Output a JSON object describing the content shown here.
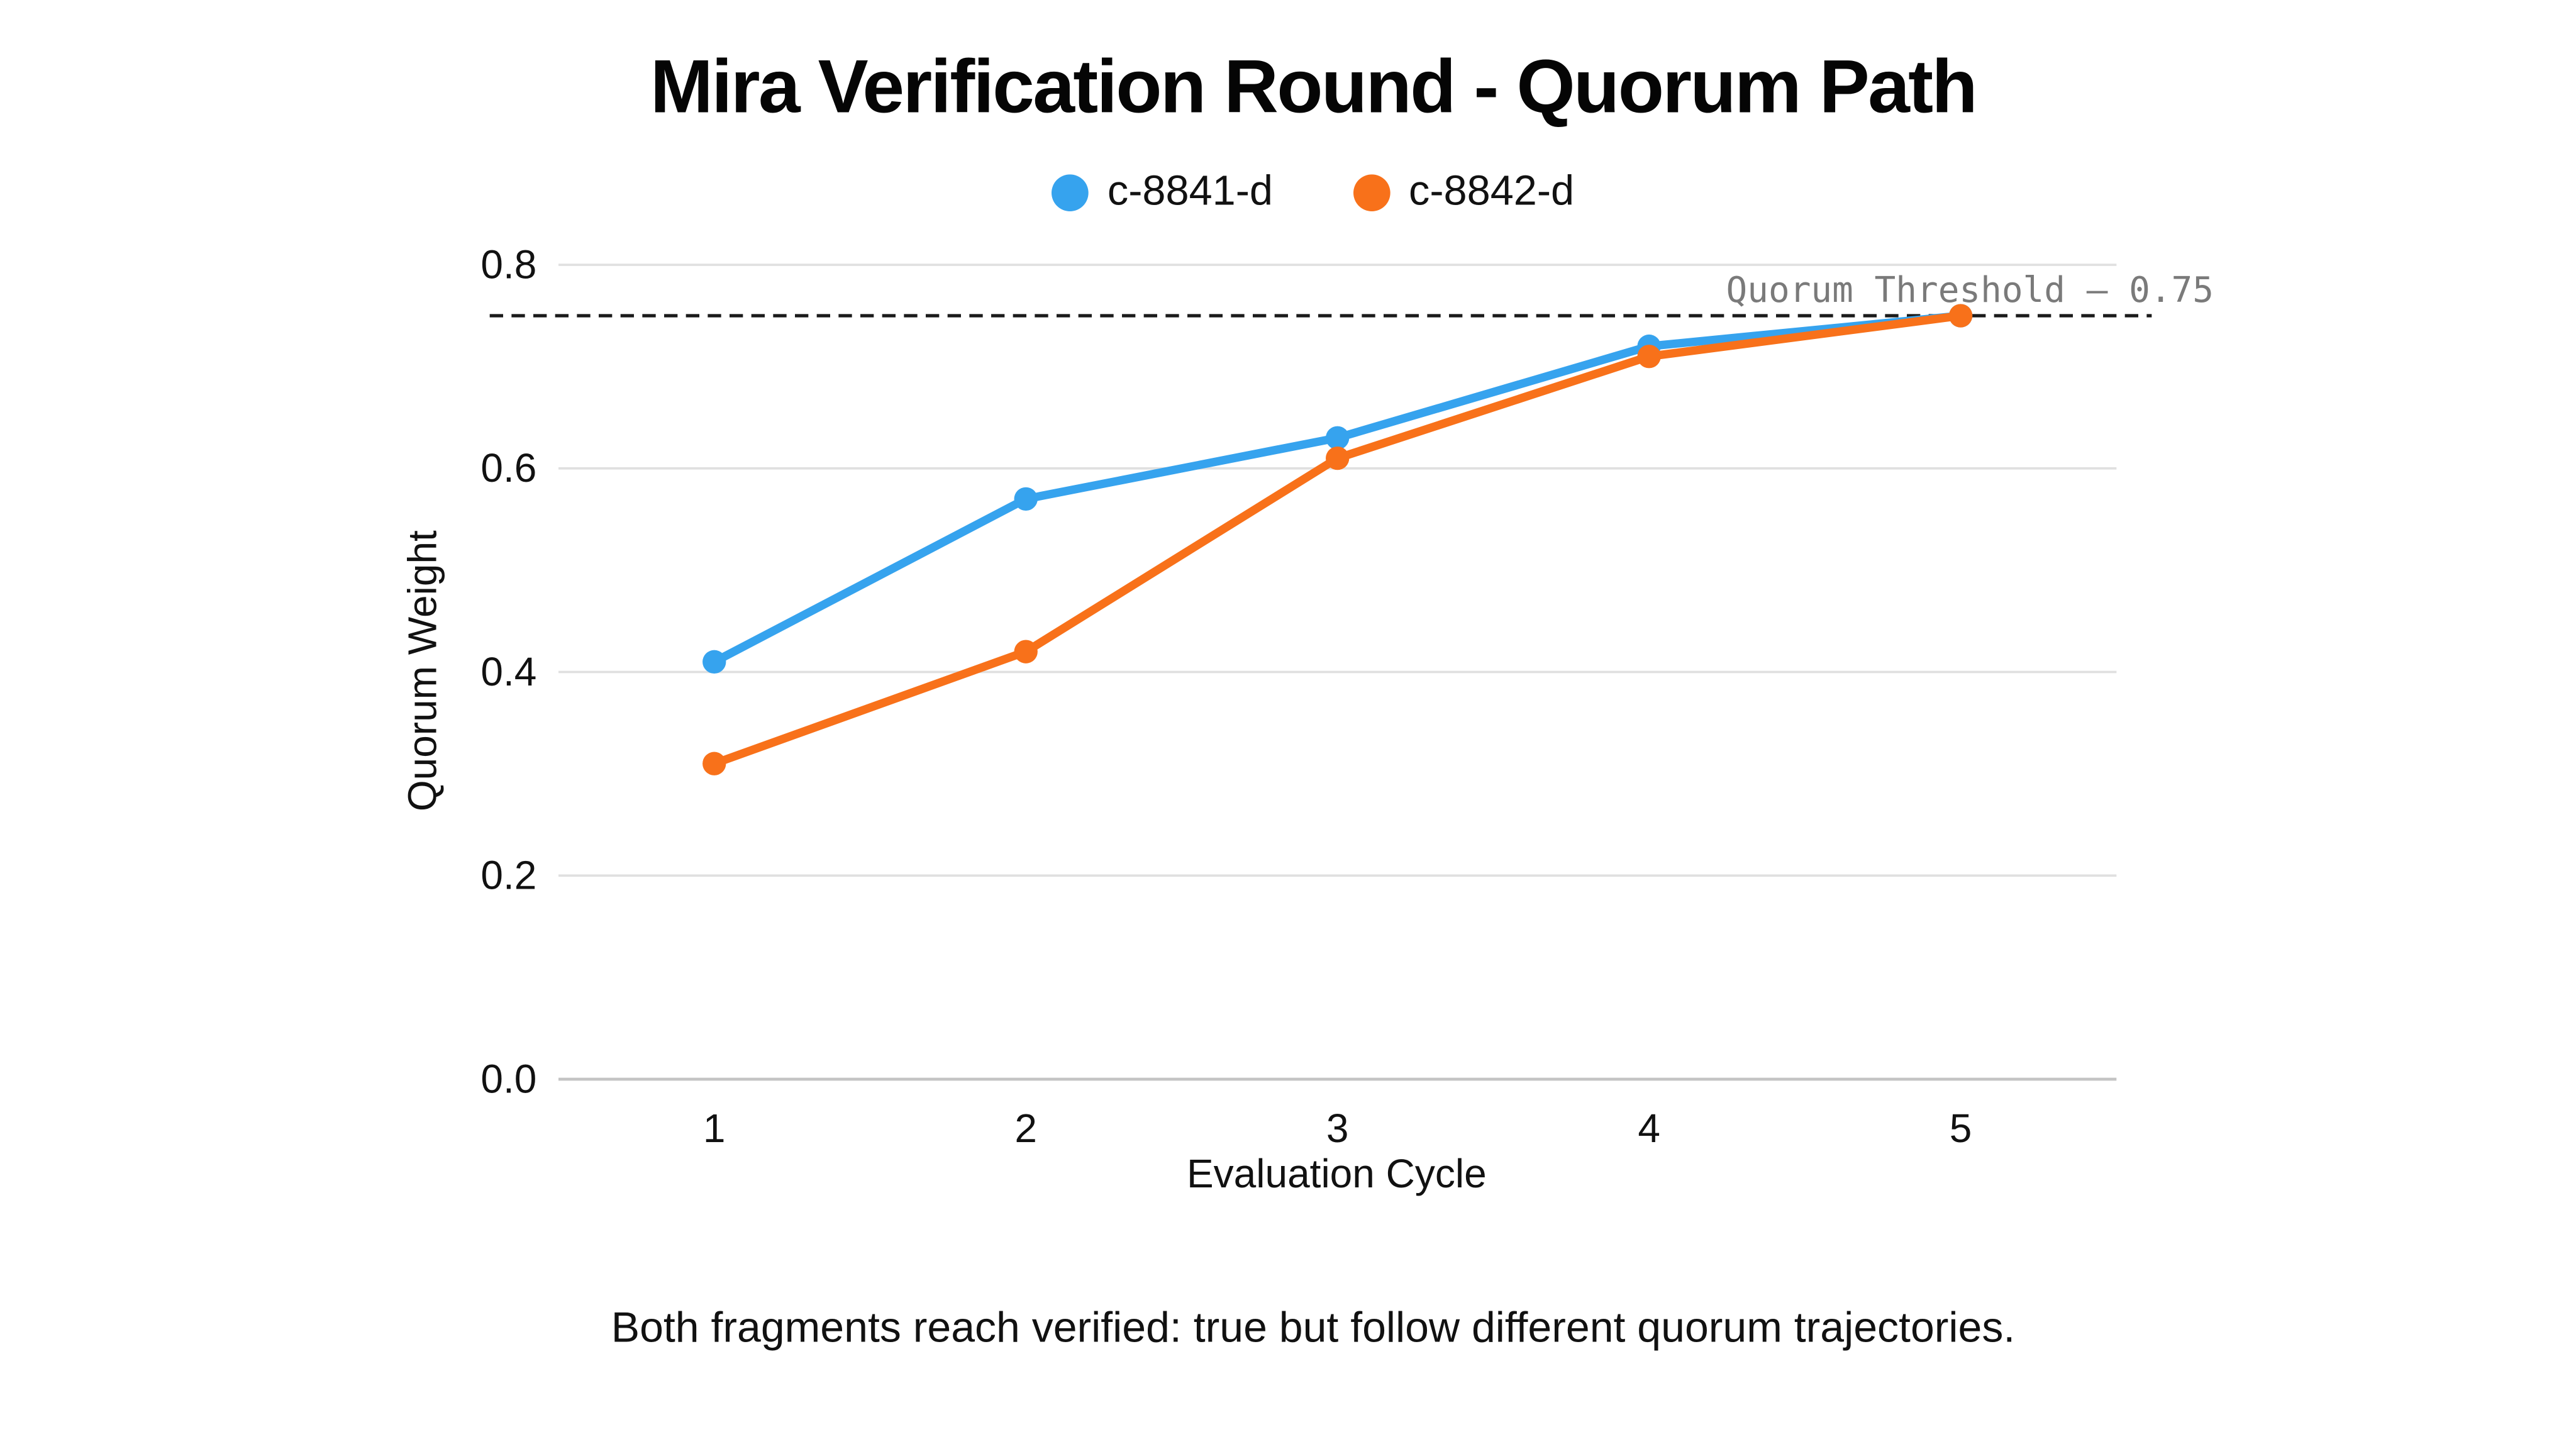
{
  "chart_data": {
    "type": "line",
    "title": "Mira Verification Round - Quorum Path",
    "xlabel": "Evaluation Cycle",
    "ylabel": "Quorum Weight",
    "categories": [
      "1",
      "2",
      "3",
      "4",
      "5"
    ],
    "series": [
      {
        "name": "c-8841-d",
        "color": "#36A3EE",
        "values": [
          0.41,
          0.57,
          0.63,
          0.72,
          0.75
        ]
      },
      {
        "name": "c-8842-d",
        "color": "#F8711A",
        "values": [
          0.31,
          0.42,
          0.61,
          0.71,
          0.75
        ]
      }
    ],
    "ylim": [
      0.0,
      0.8
    ],
    "yticks": [
      0.0,
      0.2,
      0.4,
      0.6,
      0.8
    ],
    "ytick_labels": [
      "0.0",
      "0.2",
      "0.4",
      "0.6",
      "0.8"
    ],
    "grid": "horizontal-only",
    "legend_position": "top-center",
    "threshold": {
      "value": 0.75,
      "label": "Quorum Threshold — 0.75",
      "line_style": "dashed",
      "line_color": "#1a1a1a",
      "label_color": "#7a7a7a"
    },
    "caption": "Both fragments reach verified: true but follow different quorum trajectories.",
    "colors": {
      "background": "#ffffff",
      "gridline": "#e0e0e0",
      "baseline": "#c4c4c4",
      "text": "#111111",
      "title": "#050505"
    }
  }
}
